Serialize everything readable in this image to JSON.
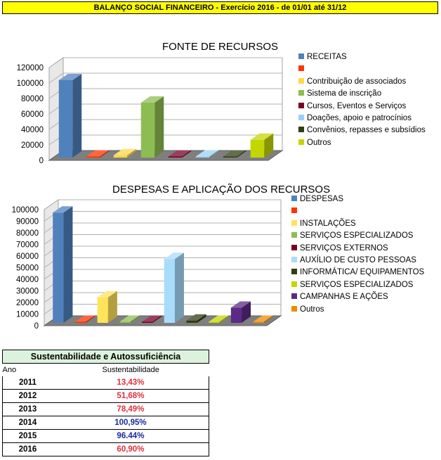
{
  "banner": "BALANÇO SOCIAL FINANCEIRO - Exercício 2016  - de 01/01 até 31/12",
  "chart_data": [
    {
      "type": "bar",
      "title": "FONTE DE RECURSOS",
      "ylim": [
        0,
        120000
      ],
      "yticks": [
        "0",
        "20000",
        "40000",
        "60000",
        "80000",
        "100000",
        "120000"
      ],
      "series": [
        {
          "name": "RECEITAS",
          "value": 100000,
          "color": "#4f81bd"
        },
        {
          "name": "",
          "value": 0,
          "color": "#ff3300"
        },
        {
          "name": "Contribuição de associados",
          "value": 3000,
          "color": "#ffd84a"
        },
        {
          "name": "Sistema de inscrição",
          "value": 71000,
          "color": "#8dbd52"
        },
        {
          "name": "Cursos, Eventos e Serviços",
          "value": 0,
          "color": "#7a0026"
        },
        {
          "name": "Doações, apoio e patrocínios",
          "value": 0,
          "color": "#9bd0f5"
        },
        {
          "name": "Convênios, repasses e subsídios",
          "value": 0,
          "color": "#2f3f10"
        },
        {
          "name": "Outros",
          "value": 23000,
          "color": "#c3d600"
        }
      ]
    },
    {
      "type": "bar",
      "title": "DESPESAS E APLICAÇÃO DOS RECURSOS",
      "ylim": [
        0,
        100000
      ],
      "yticks": [
        "0",
        "10000",
        "20000",
        "30000",
        "40000",
        "50000",
        "60000",
        "70000",
        "80000",
        "90000",
        "100000"
      ],
      "series": [
        {
          "name": "DESPESAS",
          "value": 95000,
          "color": "#4f81bd"
        },
        {
          "name": "",
          "value": 0,
          "color": "#ff3300"
        },
        {
          "name": "INSTALAÇÕES",
          "value": 22000,
          "color": "#ffe35a"
        },
        {
          "name": "SERVIÇOS ESPECIALIZADOS",
          "value": 0,
          "color": "#8dbd52"
        },
        {
          "name": "SERVIÇOS EXTERNOS",
          "value": 500,
          "color": "#7a0026"
        },
        {
          "name": "AUXÍLIO DE CUSTO PESSOAS",
          "value": 55000,
          "color": "#a8dcfb"
        },
        {
          "name": "INFORMÁTICA/ EQUIPAMENTOS",
          "value": 2000,
          "color": "#2f3f10"
        },
        {
          "name": "SERVIÇOS ESPECIALIZADOS",
          "value": 0,
          "color": "#c3d600"
        },
        {
          "name": "CAMPANHAS E AÇÕES",
          "value": 13000,
          "color": "#5b2a86"
        },
        {
          "name": "Outros",
          "value": 500,
          "color": "#f08a00"
        }
      ]
    }
  ],
  "table": {
    "title": "Sustentabilidade e Autossuficiência",
    "col_year": "Ano",
    "col_value": "Sustentabilidade",
    "rows": [
      {
        "year": "2011",
        "value": "13,43%",
        "color": "#e0303c"
      },
      {
        "year": "2012",
        "value": "51,68%",
        "color": "#e0303c"
      },
      {
        "year": "2013",
        "value": "78,49%",
        "color": "#e0303c"
      },
      {
        "year": "2014",
        "value": "100,95%",
        "color": "#1a2a9c"
      },
      {
        "year": "2015",
        "value": "96.44%",
        "color": "#1a2a9c"
      },
      {
        "year": "2016",
        "value": "60,90%",
        "color": "#e0303c"
      }
    ]
  }
}
